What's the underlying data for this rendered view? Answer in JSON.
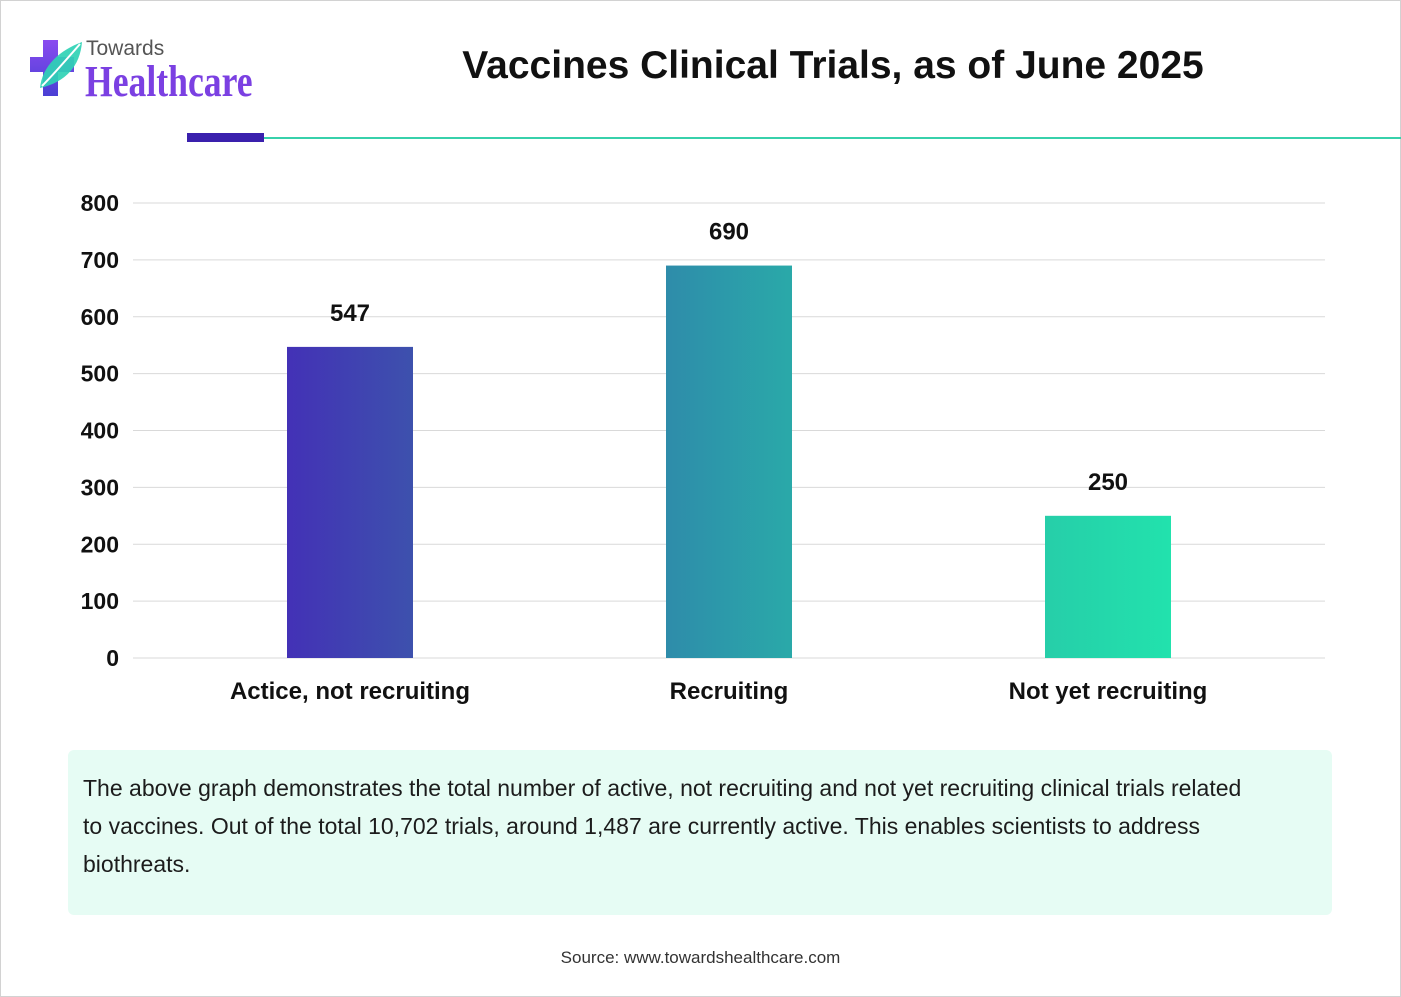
{
  "logo": {
    "line1": "Towards",
    "line2": "Healthcare",
    "icon": "medical-cross-leaf-icon",
    "colors": {
      "line1": "#555555",
      "wordmark": "#7b40e2",
      "cross_top": "#8a4bf0",
      "cross_bottom": "#4a3fd4",
      "leaf": "#2fd3b5"
    }
  },
  "header": {
    "accent_bar_color": "#3a20ad",
    "rule_color": "#37d1ab"
  },
  "chart_data": {
    "type": "bar",
    "title": "Vaccines Clinical Trials, as of June 2025",
    "categories": [
      "Actice, not recruiting",
      "Recruiting",
      "Not yet recruiting"
    ],
    "values": [
      547,
      690,
      250
    ],
    "ylim": [
      0,
      800
    ],
    "y_ticks": [
      0,
      100,
      200,
      300,
      400,
      500,
      600,
      700,
      800
    ],
    "grid": true,
    "data_labels": true,
    "grid_color": "#d9d9d9",
    "bar_colors": [
      [
        "#4331b6",
        "#3d51ad"
      ],
      [
        "#2e8caa",
        "#2aa9a9"
      ],
      [
        "#26cea9",
        "#22e2ad"
      ]
    ]
  },
  "description": {
    "background": "#e6fcf4",
    "lines": [
      "The above graph demonstrates the total number of active, not recruiting and not yet recruiting clinical trials related",
      "to vaccines. Out of the total 10,702 trials, around 1,487 are currently active. This enables scientists to address",
      "biothreats."
    ]
  },
  "source": "Source: www.towardshealthcare.com"
}
